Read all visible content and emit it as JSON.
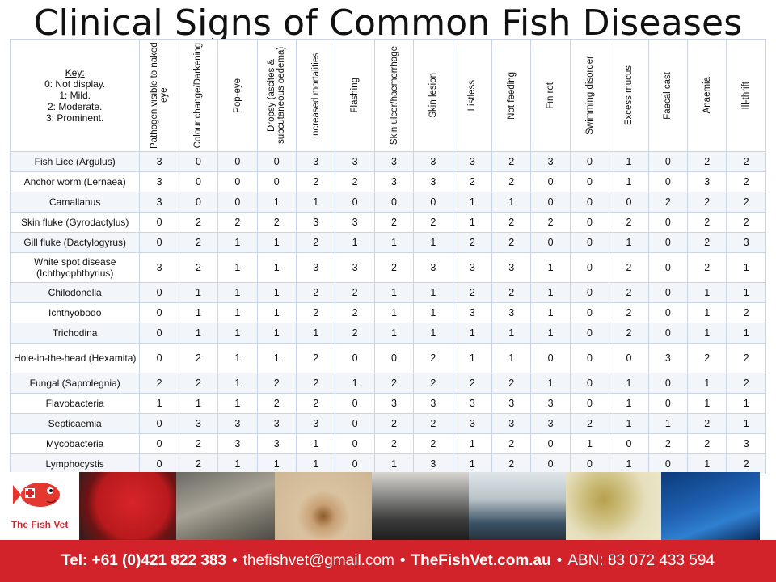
{
  "title": "Clinical Signs of Common Fish Diseases",
  "key": {
    "heading": "Key:",
    "lines": [
      "0: Not display.",
      "1: Mild.",
      "2: Moderate.",
      "3: Prominent."
    ]
  },
  "columns": [
    "Pathogen visible to naked eye",
    "Colour change/Darkening",
    "Pop-eye",
    "Dropsy (ascites & subcutaneous oedema)",
    "Increased mortalities",
    "Flashing",
    "Skin ulcer/haemorrhage",
    "Skin lesion",
    "Listless",
    "Not feeding",
    "Fin rot",
    "Swimming disorder",
    "Excess mucus",
    "Faecal cast",
    "Anaemia",
    "Ill-thrift"
  ],
  "rows": [
    {
      "name": "Fish Lice (Argulus)",
      "values": [
        "3",
        "0",
        "0",
        "0",
        "3",
        "3",
        "3",
        "3",
        "3",
        "2",
        "3",
        "0",
        "1",
        "0",
        "2",
        "2"
      ]
    },
    {
      "name": "Anchor worm (Lernaea)",
      "values": [
        "3",
        "0",
        "0",
        "0",
        "2",
        "2",
        "3",
        "3",
        "2",
        "2",
        "0",
        "0",
        "1",
        "0",
        "3",
        "2"
      ]
    },
    {
      "name": "Camallanus",
      "values": [
        "3",
        "0",
        "0",
        "1",
        "1",
        "0",
        "0",
        "0",
        "1",
        "1",
        "0",
        "0",
        "0",
        "2",
        "2",
        "2"
      ]
    },
    {
      "name": "Skin fluke (Gyrodactylus)",
      "values": [
        "0",
        "2",
        "2",
        "2",
        "3",
        "3",
        "2",
        "2",
        "1",
        "2",
        "2",
        "0",
        "2",
        "0",
        "2",
        "2"
      ]
    },
    {
      "name": "Gill fluke (Dactylogyrus)",
      "values": [
        "0",
        "2",
        "1",
        "1",
        "2",
        "1",
        "1",
        "1",
        "2",
        "2",
        "0",
        "0",
        "1",
        "0",
        "2",
        "3"
      ]
    },
    {
      "name": "White spot disease (Ichthyophthyrius)",
      "values": [
        "3",
        "2",
        "1",
        "1",
        "3",
        "3",
        "2",
        "3",
        "3",
        "3",
        "1",
        "0",
        "2",
        "0",
        "2",
        "1"
      ]
    },
    {
      "name": "Chilodonella",
      "values": [
        "0",
        "1",
        "1",
        "1",
        "2",
        "2",
        "1",
        "1",
        "2",
        "2",
        "1",
        "0",
        "2",
        "0",
        "1",
        "1"
      ]
    },
    {
      "name": "Ichthyobodo",
      "values": [
        "0",
        "1",
        "1",
        "1",
        "2",
        "2",
        "1",
        "1",
        "3",
        "3",
        "1",
        "0",
        "2",
        "0",
        "1",
        "2"
      ]
    },
    {
      "name": "Trichodina",
      "values": [
        "0",
        "1",
        "1",
        "1",
        "1",
        "2",
        "1",
        "1",
        "1",
        "1",
        "1",
        "0",
        "2",
        "0",
        "1",
        "1"
      ]
    },
    {
      "name": "Hole-in-the-head (Hexamita)",
      "values": [
        "0",
        "2",
        "1",
        "1",
        "2",
        "0",
        "0",
        "2",
        "1",
        "1",
        "0",
        "0",
        "0",
        "3",
        "2",
        "2"
      ]
    },
    {
      "name": "Fungal (Saprolegnia)",
      "values": [
        "2",
        "2",
        "1",
        "2",
        "2",
        "1",
        "2",
        "2",
        "2",
        "2",
        "1",
        "0",
        "1",
        "0",
        "1",
        "2"
      ]
    },
    {
      "name": "Flavobacteria",
      "values": [
        "1",
        "1",
        "1",
        "2",
        "2",
        "0",
        "3",
        "3",
        "3",
        "3",
        "3",
        "0",
        "1",
        "0",
        "1",
        "1"
      ]
    },
    {
      "name": "Septicaemia",
      "values": [
        "0",
        "3",
        "3",
        "3",
        "3",
        "0",
        "2",
        "2",
        "3",
        "3",
        "3",
        "2",
        "1",
        "1",
        "2",
        "1"
      ]
    },
    {
      "name": "Mycobacteria",
      "values": [
        "0",
        "2",
        "3",
        "3",
        "1",
        "0",
        "2",
        "2",
        "1",
        "2",
        "0",
        "1",
        "0",
        "2",
        "2",
        "3"
      ]
    },
    {
      "name": "Lymphocystis",
      "values": [
        "0",
        "2",
        "1",
        "1",
        "1",
        "0",
        "1",
        "3",
        "1",
        "2",
        "0",
        "0",
        "1",
        "0",
        "1",
        "2"
      ]
    }
  ],
  "logo": {
    "text": "The Fish Vet"
  },
  "footer": {
    "tel": "Tel: +61 (0)421 822 383",
    "email": "thefishvet@gmail.com",
    "website": "TheFishVet.com.au",
    "abn": "ABN: 83 072 433 594",
    "separator": "•"
  }
}
